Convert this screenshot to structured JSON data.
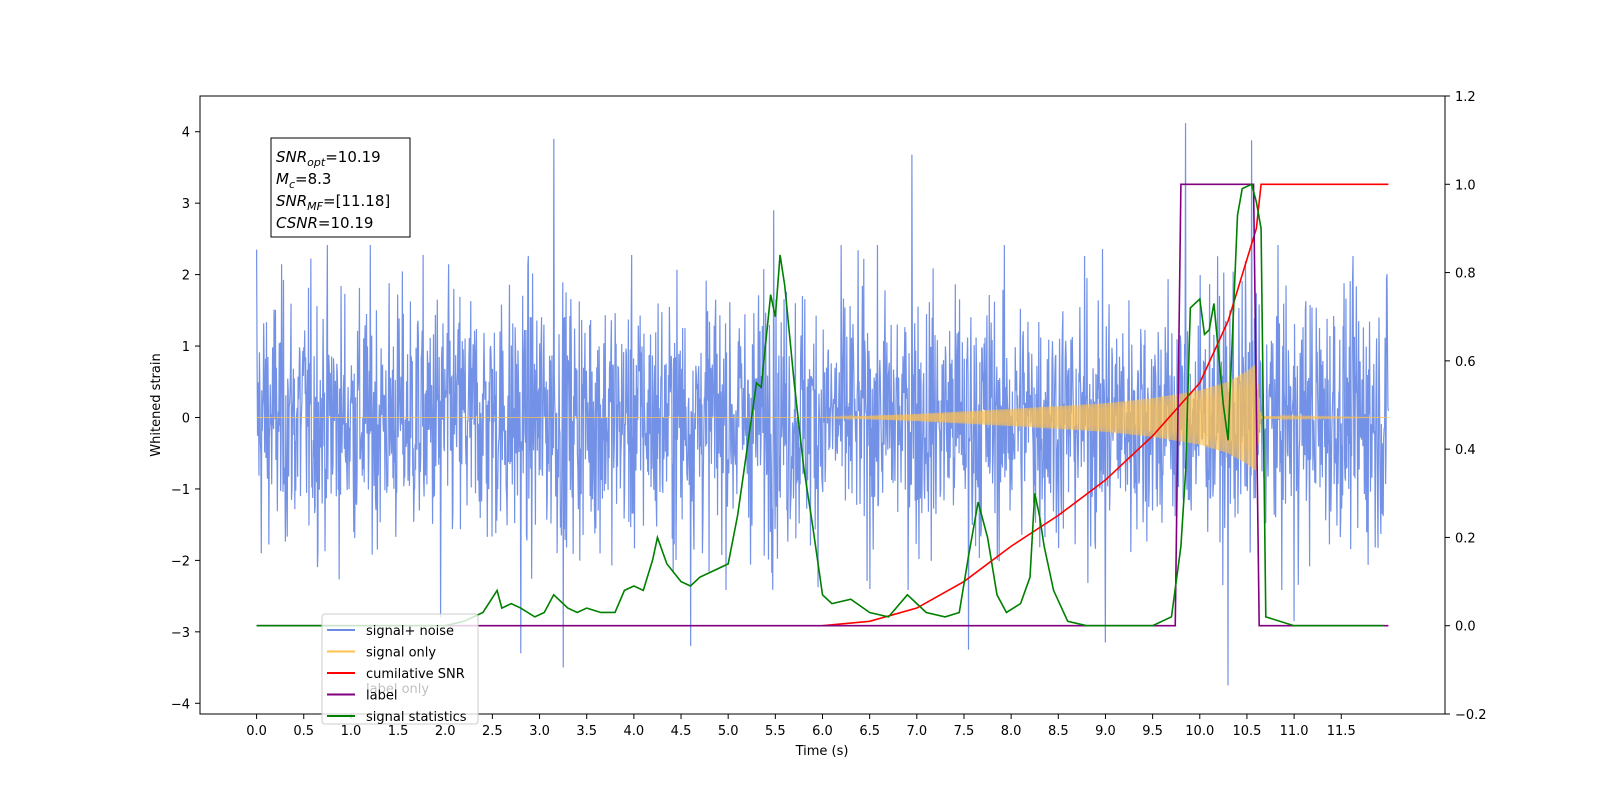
{
  "chart_data": {
    "type": "line",
    "xlabel": "Time (s)",
    "ylabel": "Whitened strain",
    "xlim": [
      -0.6,
      12.6
    ],
    "ylim": [
      -4.15,
      4.5
    ],
    "y2lim": [
      -0.2,
      1.2
    ],
    "xticks": [
      0.0,
      0.5,
      1.0,
      1.5,
      2.0,
      2.5,
      3.0,
      3.5,
      4.0,
      4.5,
      5.0,
      5.5,
      6.0,
      6.5,
      7.0,
      7.5,
      8.0,
      8.5,
      9.0,
      9.5,
      10.0,
      10.5,
      11.0,
      11.5
    ],
    "xtick_labels": [
      "0.0",
      "0.5",
      "1.0",
      "1.5",
      "2.0",
      "2.5",
      "3.0",
      "3.5",
      "4.0",
      "4.5",
      "5.0",
      "5.5",
      "6.0",
      "6.5",
      "7.0",
      "7.5",
      "8.0",
      "8.5",
      "9.0",
      "9.5",
      "10.0",
      "10.5",
      "11.0",
      "11.5"
    ],
    "yticks": [
      -4,
      -3,
      -2,
      -1,
      0,
      1,
      2,
      3,
      4
    ],
    "ytick_labels": [
      "−4",
      "−3",
      "−2",
      "−1",
      "0",
      "1",
      "2",
      "3",
      "4"
    ],
    "y2ticks": [
      -0.2,
      0.0,
      0.2,
      0.4,
      0.6,
      0.8,
      1.0,
      1.2
    ],
    "y2tick_labels": [
      "−0.2",
      "0.0",
      "0.2",
      "0.4",
      "0.6",
      "0.8",
      "1.0",
      "1.2"
    ],
    "grid": false,
    "legend_position": "lower-left",
    "legend": [
      {
        "label": "signal+ noise",
        "color": "#6b8ce6"
      },
      {
        "label": "signal only",
        "color": "#ffc04d"
      },
      {
        "label": "cumilative SNR",
        "color": "#ff0000"
      },
      {
        "label": "label",
        "color": "#800080"
      },
      {
        "label": "signal statistics",
        "color": "#008000"
      }
    ],
    "ghost_text": "label only",
    "annotation": {
      "lines": [
        {
          "sym": "SNR",
          "sub": "opt",
          "val": "=10.19"
        },
        {
          "sym": "M",
          "sub": "c",
          "val": "=8.3"
        },
        {
          "sym": "SNR",
          "sub": "MF",
          "val": "=[11.18]"
        },
        {
          "sym": "CSNR",
          "sub": "",
          "val": "=10.19"
        }
      ]
    },
    "series": [
      {
        "name": "signal+ noise",
        "axis": "left",
        "style": "noise",
        "color": "#6b8ce6",
        "x_range": [
          0.0,
          12.0
        ],
        "typical_abs_max": 2.3,
        "peaks": [
          [
            0.0,
            2.35
          ],
          [
            0.05,
            -1.9
          ],
          [
            3.15,
            3.9
          ],
          [
            3.25,
            -3.5
          ],
          [
            2.8,
            -3.3
          ],
          [
            6.95,
            3.68
          ],
          [
            4.6,
            -3.2
          ],
          [
            9.85,
            4.12
          ],
          [
            10.3,
            -3.75
          ],
          [
            10.55,
            3.88
          ],
          [
            7.55,
            -3.25
          ],
          [
            9.0,
            -3.15
          ],
          [
            5.48,
            2.9
          ],
          [
            1.95,
            -2.8
          ],
          [
            11.0,
            -2.85
          ]
        ]
      },
      {
        "name": "signal only",
        "axis": "left",
        "style": "envelope",
        "color": "#ffc04d",
        "x": [
          0.0,
          6.0,
          7.0,
          8.0,
          9.0,
          9.5,
          10.0,
          10.3,
          10.5,
          10.6,
          10.65,
          12.0
        ],
        "amplitude": [
          0.0,
          0.0,
          0.05,
          0.12,
          0.2,
          0.27,
          0.38,
          0.5,
          0.65,
          0.75,
          0.02,
          0.0
        ]
      },
      {
        "name": "cumilative SNR",
        "axis": "right",
        "color": "#ff0000",
        "x": [
          6.0,
          6.5,
          7.0,
          7.5,
          8.0,
          8.5,
          9.0,
          9.5,
          10.0,
          10.3,
          10.5,
          10.6,
          10.65,
          12.0
        ],
        "y": [
          0.0,
          0.01,
          0.04,
          0.1,
          0.18,
          0.25,
          0.33,
          0.43,
          0.55,
          0.69,
          0.83,
          0.9,
          1.0,
          1.0
        ]
      },
      {
        "name": "label",
        "axis": "right",
        "color": "#800080",
        "x": [
          0.0,
          9.74,
          9.8,
          10.57,
          10.63,
          12.0
        ],
        "y": [
          0.0,
          0.0,
          1.0,
          1.0,
          0.0,
          0.0
        ]
      },
      {
        "name": "signal statistics",
        "axis": "right",
        "color": "#008000",
        "x": [
          0.0,
          0.5,
          1.0,
          1.5,
          2.0,
          2.2,
          2.4,
          2.55,
          2.6,
          2.7,
          2.8,
          2.95,
          3.05,
          3.15,
          3.3,
          3.4,
          3.5,
          3.65,
          3.8,
          3.9,
          4.0,
          4.1,
          4.2,
          4.25,
          4.35,
          4.5,
          4.6,
          4.7,
          4.8,
          5.0,
          5.1,
          5.2,
          5.3,
          5.35,
          5.45,
          5.5,
          5.55,
          5.6,
          5.7,
          5.8,
          5.9,
          6.0,
          6.1,
          6.3,
          6.5,
          6.7,
          6.9,
          7.0,
          7.1,
          7.3,
          7.45,
          7.55,
          7.65,
          7.75,
          7.85,
          7.95,
          8.1,
          8.2,
          8.25,
          8.3,
          8.35,
          8.45,
          8.6,
          8.8,
          9.0,
          9.3,
          9.5,
          9.7,
          9.8,
          9.85,
          9.9,
          10.0,
          10.05,
          10.1,
          10.15,
          10.25,
          10.3,
          10.4,
          10.45,
          10.55,
          10.6,
          10.65,
          10.7,
          11.0,
          11.5,
          11.95
        ],
        "y": [
          0.0,
          0.0,
          0.0,
          0.0,
          0.0,
          0.01,
          0.03,
          0.08,
          0.04,
          0.05,
          0.04,
          0.02,
          0.03,
          0.07,
          0.04,
          0.03,
          0.04,
          0.03,
          0.03,
          0.08,
          0.09,
          0.08,
          0.15,
          0.2,
          0.14,
          0.1,
          0.09,
          0.11,
          0.12,
          0.14,
          0.25,
          0.4,
          0.55,
          0.54,
          0.75,
          0.7,
          0.84,
          0.77,
          0.55,
          0.36,
          0.22,
          0.07,
          0.05,
          0.06,
          0.03,
          0.02,
          0.07,
          0.05,
          0.03,
          0.02,
          0.03,
          0.16,
          0.28,
          0.2,
          0.07,
          0.03,
          0.05,
          0.11,
          0.3,
          0.25,
          0.18,
          0.08,
          0.01,
          0.0,
          0.0,
          0.0,
          0.0,
          0.02,
          0.18,
          0.35,
          0.72,
          0.74,
          0.66,
          0.67,
          0.73,
          0.5,
          0.42,
          0.93,
          0.99,
          1.0,
          0.96,
          0.9,
          0.02,
          0.0,
          0.0,
          0.0
        ]
      }
    ]
  }
}
